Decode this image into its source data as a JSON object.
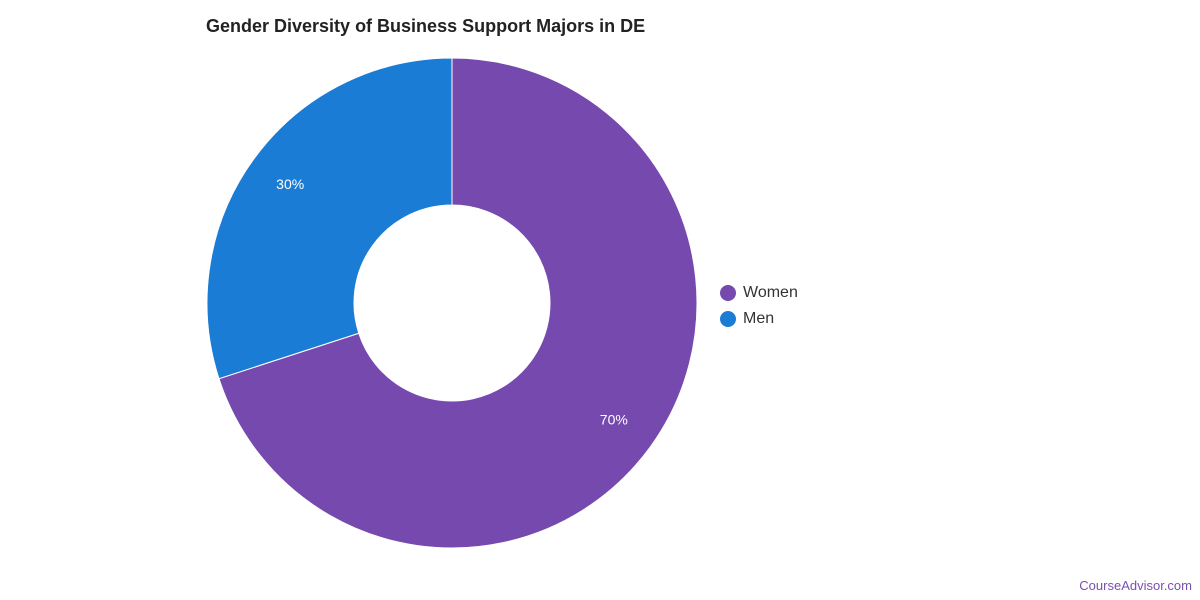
{
  "chart_data": {
    "type": "pie",
    "title": "Gender Diversity of Business Support Majors in DE",
    "categories": [
      "Women",
      "Men"
    ],
    "values": [
      70,
      30
    ],
    "value_labels": [
      "70%",
      "30%"
    ],
    "colors": [
      "#7549ae",
      "#1a7cd4"
    ],
    "donut": true,
    "legend_position": "right"
  },
  "watermark": "CourseAdvisor.com"
}
